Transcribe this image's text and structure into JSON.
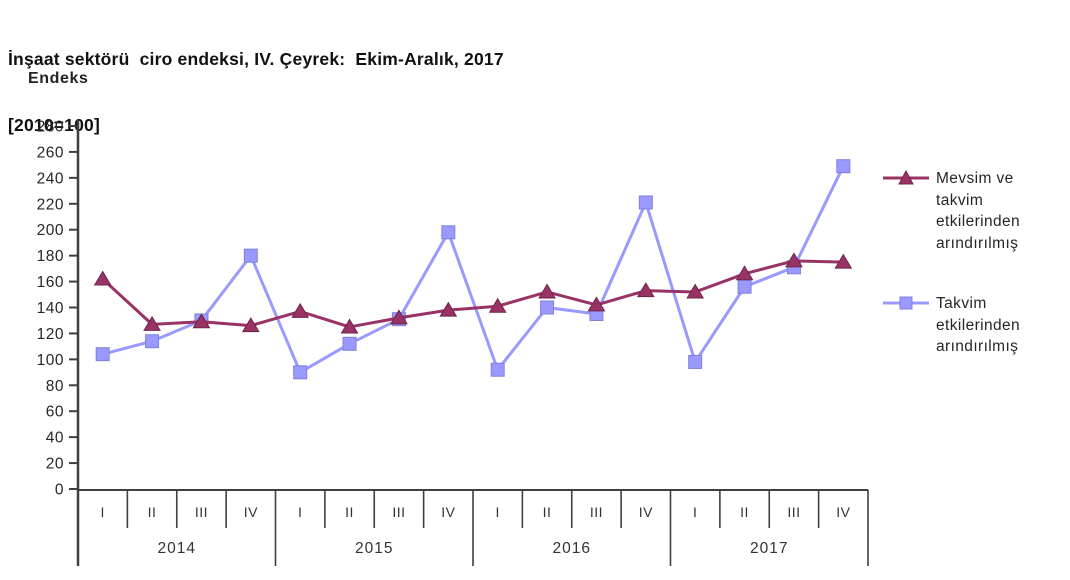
{
  "header": {
    "title_line1": "İnşaat sektörü  ciro endeksi, IV. Çeyrek:  Ekim-Aralık, 2017",
    "title_line2": "[2010=100]"
  },
  "chart_data": {
    "type": "line",
    "title": "İnşaat sektörü ciro endeksi, IV. Çeyrek: Ekim-Aralık, 2017 [2010=100]",
    "ylabel": "Endeks",
    "xlabel": "",
    "ylim": [
      0,
      280
    ],
    "ytick_step": 20,
    "grid": false,
    "legend_position": "right",
    "quarter_labels": [
      "I",
      "II",
      "III",
      "IV"
    ],
    "years": [
      "2014",
      "2015",
      "2016",
      "2017"
    ],
    "categories": [
      "2014-I",
      "2014-II",
      "2014-III",
      "2014-IV",
      "2015-I",
      "2015-II",
      "2015-III",
      "2015-IV",
      "2016-I",
      "2016-II",
      "2016-III",
      "2016-IV",
      "2017-I",
      "2017-II",
      "2017-III",
      "2017-IV"
    ],
    "series": [
      {
        "name": "Mevsim ve takvim etkilerinden arındırılmış",
        "legend_lines": [
          "Mevsim ve",
          "takvim",
          "etkilerinden",
          "arındırılmış"
        ],
        "color": "#993366",
        "marker": "triangle",
        "values": [
          162,
          127,
          129,
          126,
          137,
          125,
          132,
          138,
          141,
          152,
          142,
          153,
          152,
          166,
          176,
          175
        ]
      },
      {
        "name": "Takvim etkilerinden arındırılmış",
        "legend_lines": [
          "Takvim",
          "etkilerinden",
          "arındırılmış"
        ],
        "color": "#9999FF",
        "marker": "square",
        "values": [
          104,
          114,
          130,
          180,
          90,
          112,
          131,
          198,
          92,
          140,
          135,
          221,
          98,
          156,
          171,
          249
        ]
      }
    ]
  }
}
